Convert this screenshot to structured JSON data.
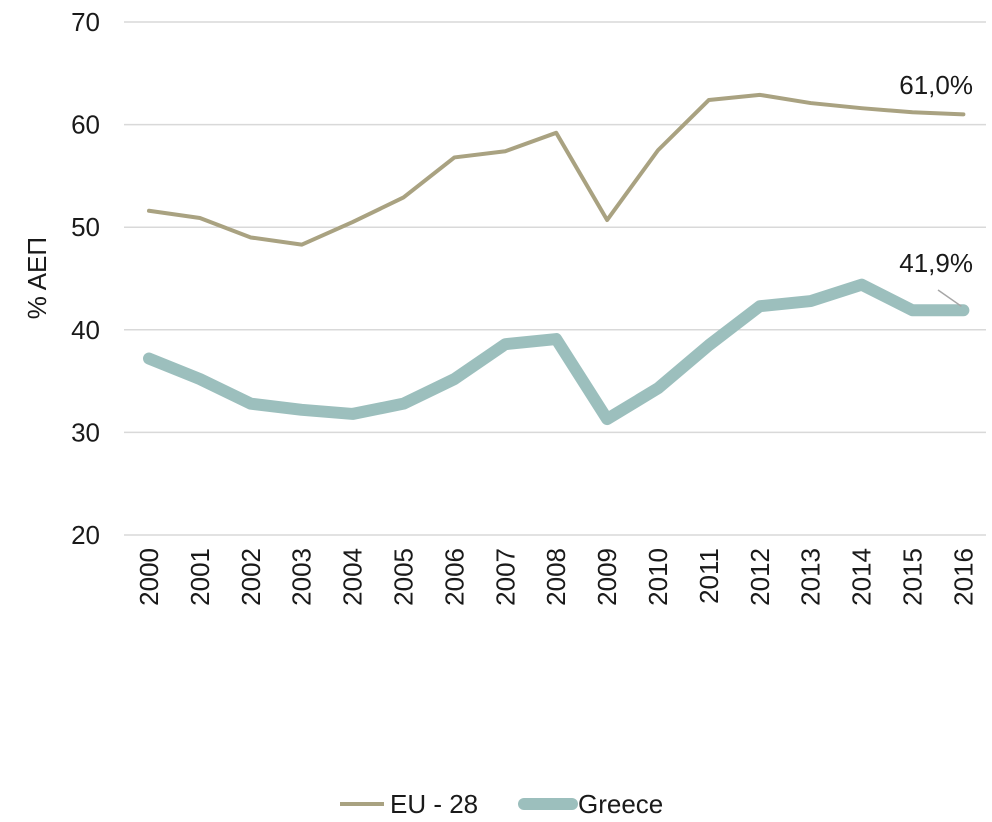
{
  "chart_data": {
    "type": "line",
    "title": "",
    "xlabel": "",
    "ylabel": "% ΑΕΠ",
    "ylim": [
      20,
      70
    ],
    "yticks": [
      "20",
      "30",
      "40",
      "50",
      "60",
      "70"
    ],
    "categories": [
      "2000",
      "2001",
      "2002",
      "2003",
      "2004",
      "2005",
      "2006",
      "2007",
      "2008",
      "2009",
      "2010",
      "2011",
      "2012",
      "2013",
      "2014",
      "2015",
      "2016"
    ],
    "grid": true,
    "legend_position": "bottom",
    "series": [
      {
        "name": "EU - 28",
        "color": "#a9a281",
        "values": [
          51.6,
          50.9,
          49.0,
          48.3,
          50.5,
          52.9,
          56.8,
          57.4,
          59.2,
          50.7,
          57.5,
          62.4,
          62.9,
          62.1,
          61.6,
          61.2,
          61.0
        ],
        "end_label": "61,0%"
      },
      {
        "name": "Greece",
        "color": "#9cbfbd",
        "values": [
          37.2,
          35.2,
          32.8,
          32.2,
          31.8,
          32.8,
          35.2,
          38.6,
          39.1,
          31.3,
          34.3,
          38.5,
          42.3,
          42.8,
          44.4,
          41.9,
          41.9
        ],
        "end_label": "41,9%"
      }
    ]
  }
}
